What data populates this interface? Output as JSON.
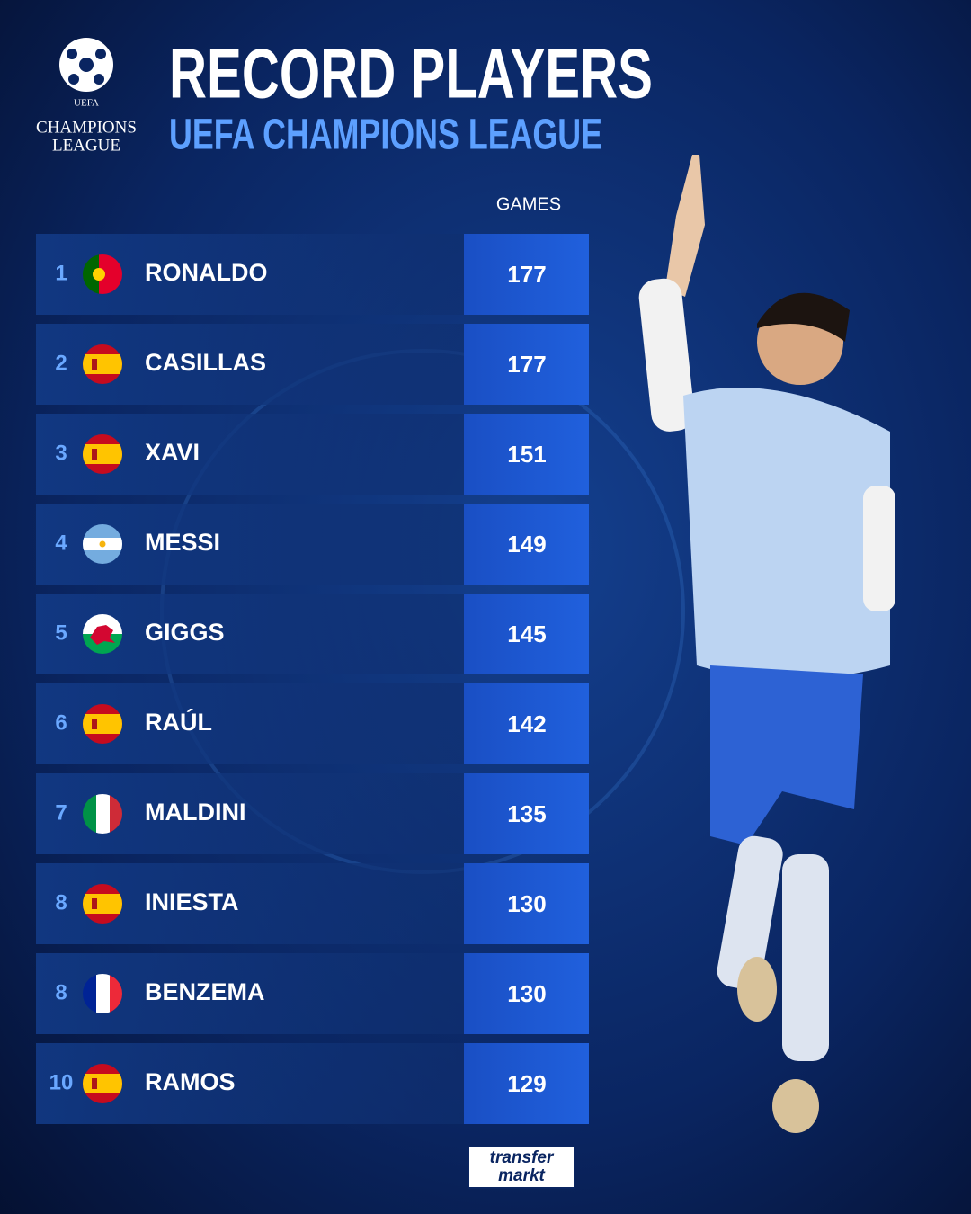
{
  "header": {
    "logo_lines": [
      "UEFA",
      "CHAMPIONS",
      "LEAGUE"
    ],
    "title": "RECORD PLAYERS",
    "subtitle": "UEFA CHAMPIONS LEAGUE"
  },
  "table": {
    "column_header": "GAMES",
    "rows": [
      {
        "rank": "1",
        "name": "RONALDO",
        "games": 177
      },
      {
        "rank": "2",
        "name": "CASILLAS",
        "games": 177
      },
      {
        "rank": "3",
        "name": "XAVI",
        "games": 151
      },
      {
        "rank": "4",
        "name": "MESSI",
        "games": 149
      },
      {
        "rank": "5",
        "name": "GIGGS",
        "games": 145
      },
      {
        "rank": "6",
        "name": "RAÚL",
        "games": 142
      },
      {
        "rank": "7",
        "name": "MALDINI",
        "games": 135
      },
      {
        "rank": "8",
        "name": "INIESTA",
        "games": 130
      },
      {
        "rank": "8",
        "name": "BENZEMA",
        "games": 130
      },
      {
        "rank": "10",
        "name": "RAMOS",
        "games": 129
      }
    ]
  },
  "footer": {
    "brand_lines": [
      "transfer",
      "markt"
    ]
  }
}
